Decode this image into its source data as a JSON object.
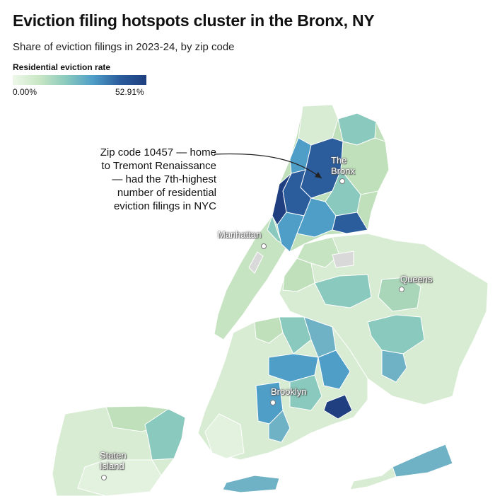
{
  "title": "Eviction filing hotspots cluster in the Bronx, NY",
  "subtitle": "Share of eviction filings in 2023-24, by zip code",
  "legend": {
    "title": "Residential eviction rate",
    "min_label": "0.00%",
    "max_label": "52.91%",
    "colors": [
      "#eef7ea",
      "#c8e6c4",
      "#8ac9bd",
      "#4f9ec8",
      "#2b5c9c",
      "#1f3f80"
    ]
  },
  "annotation": {
    "lines": [
      "Zip code 10457 — home",
      "to Tremont Renaissance",
      "— had the 7th-highest",
      "number of residential",
      "eviction filings in NYC"
    ]
  },
  "places": {
    "bronx": [
      "The",
      "Bronx"
    ],
    "manhattan": "Manhattan",
    "queens": "Queens",
    "brooklyn": "Brooklyn",
    "staten": [
      "Staten",
      "Island"
    ]
  },
  "colors": {
    "land_light": "#d8ecd3",
    "land_mid": "#bfe0bb",
    "teal": "#8ac9bd",
    "blue_mid": "#4f9ec8",
    "blue_dark": "#2b5c9c",
    "navy": "#1f3f80",
    "park_gray": "#d9d9d9"
  }
}
